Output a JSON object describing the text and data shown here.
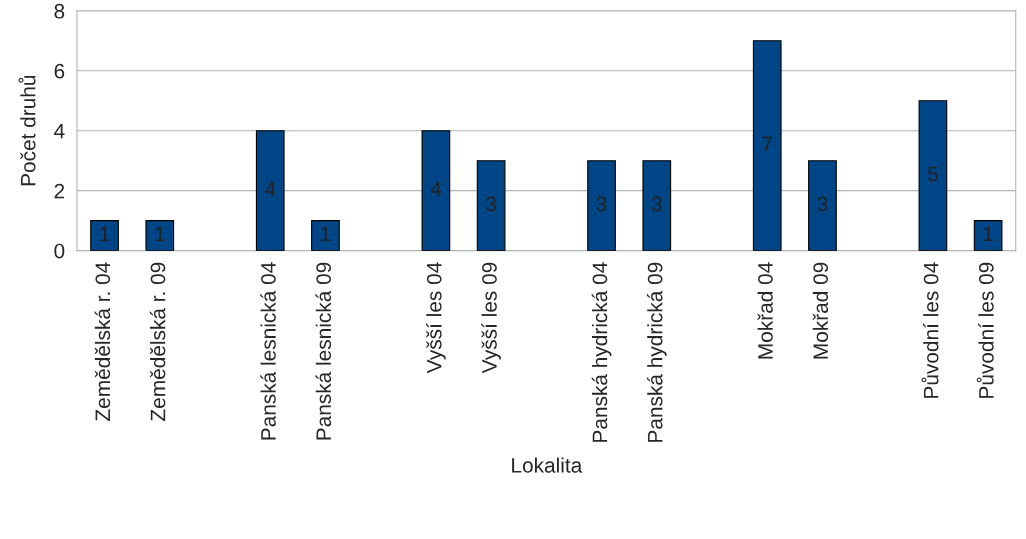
{
  "chart_data": {
    "type": "bar",
    "xlabel": "Lokalita",
    "ylabel": "Počet druhů",
    "categories": [
      "Zemědělská r. 04",
      "Zemědělská r. 09",
      null,
      "Panská lesnická 04",
      "Panská lesnická 09",
      null,
      "Vyšší les 04",
      "Vyšší les 09",
      null,
      "Panská hydrická 04",
      "Panská hydrická 09",
      null,
      "Mokřad 04",
      "Mokřad 09",
      null,
      "Původní les 04",
      "Původní les 09"
    ],
    "values": [
      1,
      1,
      null,
      4,
      1,
      null,
      4,
      3,
      null,
      3,
      3,
      null,
      7,
      3,
      null,
      5,
      1
    ],
    "color": "#004586",
    "ylim": [
      0,
      8
    ],
    "yticks": [
      0,
      2,
      4,
      6,
      8
    ],
    "grid": "y",
    "data_labels": true
  }
}
